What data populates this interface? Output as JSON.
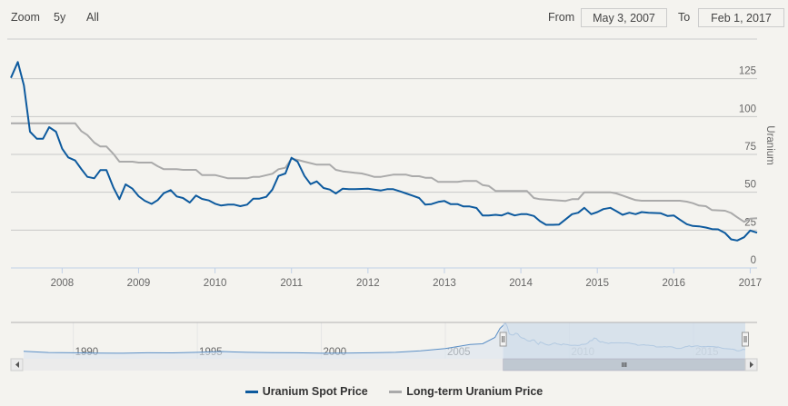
{
  "range_selector": {
    "zoom_label": "Zoom",
    "buttons": [
      "5y",
      "All"
    ],
    "from_label": "From",
    "from_value": "May 3, 2007",
    "to_label": "To",
    "to_value": "Feb 1, 2017"
  },
  "colors": {
    "spot": "#0d5a9e",
    "longterm": "#aaaaaa",
    "navigator_fill": "#cfdcea",
    "navigator_line": "#5b8fc6"
  },
  "chart_data": {
    "type": "line",
    "title": "",
    "xlabel": "",
    "ylabel": "Uranium",
    "xlim": [
      2007.33,
      2017.09
    ],
    "ylim": [
      0,
      150
    ],
    "y_ticks": [
      0,
      25,
      50,
      75,
      100,
      125
    ],
    "x_ticks": [
      2008,
      2009,
      2010,
      2011,
      2012,
      2013,
      2014,
      2015,
      2016,
      2017
    ],
    "grid": true,
    "legend_position": "bottom-center",
    "series": [
      {
        "name": "Uranium Spot Price",
        "x": [
          2007.33,
          2007.42,
          2007.5,
          2007.58,
          2007.67,
          2007.75,
          2007.83,
          2007.92,
          2008.0,
          2008.08,
          2008.17,
          2008.25,
          2008.33,
          2008.42,
          2008.5,
          2008.58,
          2008.67,
          2008.75,
          2008.83,
          2008.92,
          2009.0,
          2009.08,
          2009.17,
          2009.25,
          2009.33,
          2009.42,
          2009.5,
          2009.58,
          2009.67,
          2009.75,
          2009.83,
          2009.92,
          2010.0,
          2010.08,
          2010.17,
          2010.25,
          2010.33,
          2010.42,
          2010.5,
          2010.58,
          2010.67,
          2010.75,
          2010.83,
          2010.92,
          2011.0,
          2011.08,
          2011.17,
          2011.25,
          2011.33,
          2011.42,
          2011.5,
          2011.58,
          2011.67,
          2011.75,
          2011.83,
          2011.92,
          2012.0,
          2012.08,
          2012.17,
          2012.25,
          2012.33,
          2012.42,
          2012.5,
          2012.58,
          2012.67,
          2012.75,
          2012.83,
          2012.92,
          2013.0,
          2013.08,
          2013.17,
          2013.25,
          2013.33,
          2013.42,
          2013.5,
          2013.58,
          2013.67,
          2013.75,
          2013.83,
          2013.92,
          2014.0,
          2014.08,
          2014.17,
          2014.25,
          2014.33,
          2014.42,
          2014.5,
          2014.58,
          2014.67,
          2014.75,
          2014.83,
          2014.92,
          2015.0,
          2015.08,
          2015.17,
          2015.25,
          2015.33,
          2015.42,
          2015.5,
          2015.58,
          2015.67,
          2015.75,
          2015.83,
          2015.92,
          2016.0,
          2016.08,
          2016.17,
          2016.25,
          2016.33,
          2016.42,
          2016.5,
          2016.58,
          2016.67,
          2016.75,
          2016.83,
          2016.92,
          2017.0,
          2017.09
        ],
        "values": [
          125.6,
          136,
          120.6,
          90,
          85.3,
          85.3,
          93,
          90,
          78.8,
          73,
          71,
          65.4,
          60.2,
          59.2,
          64.6,
          64.6,
          53.2,
          45.4,
          55.2,
          52.4,
          47.4,
          44.4,
          42.3,
          44.8,
          49.4,
          51.4,
          47.2,
          46.2,
          43.2,
          47.8,
          45.6,
          44.6,
          42.4,
          41.2,
          41.8,
          41.8,
          40.8,
          41.8,
          45.8,
          45.8,
          47,
          51.8,
          60.8,
          62.4,
          72.8,
          70.2,
          60.8,
          55.4,
          57.2,
          52.8,
          51.8,
          49.2,
          52.4,
          52,
          52,
          52.2,
          52.4,
          51.8,
          51.2,
          52,
          52,
          50.6,
          49.2,
          47.8,
          46.2,
          41.8,
          42.2,
          43.6,
          44.2,
          42.2,
          42.2,
          40.6,
          40.6,
          39.6,
          34.7,
          34.7,
          35.1,
          34.7,
          36.3,
          34.7,
          35.5,
          35.5,
          34.3,
          30.9,
          28.5,
          28.5,
          28.7,
          31.9,
          35.5,
          36.5,
          39.7,
          35.5,
          36.9,
          38.9,
          39.7,
          37.5,
          35.1,
          36.5,
          35.5,
          36.9,
          36.5,
          36.3,
          36.1,
          34.3,
          34.7,
          31.9,
          28.9,
          27.7,
          27.5,
          26.7,
          25.7,
          25.5,
          23.1,
          18.9,
          18.1,
          20.3,
          24.7,
          23.3
        ]
      },
      {
        "name": "Long-term Uranium Price",
        "x": [
          2007.33,
          2008.17,
          2008.25,
          2008.33,
          2008.42,
          2008.5,
          2008.58,
          2008.67,
          2008.75,
          2008.92,
          2009.0,
          2009.17,
          2009.25,
          2009.33,
          2009.5,
          2009.58,
          2009.75,
          2009.83,
          2010.0,
          2010.17,
          2010.42,
          2010.5,
          2010.58,
          2010.75,
          2010.83,
          2010.92,
          2011.0,
          2011.08,
          2011.17,
          2011.33,
          2011.5,
          2011.58,
          2011.67,
          2011.83,
          2011.92,
          2012.0,
          2012.08,
          2012.17,
          2012.33,
          2012.5,
          2012.58,
          2012.67,
          2012.75,
          2012.83,
          2012.92,
          2013.17,
          2013.25,
          2013.42,
          2013.5,
          2013.58,
          2013.67,
          2014.08,
          2014.17,
          2014.25,
          2014.33,
          2014.5,
          2014.58,
          2014.67,
          2014.75,
          2014.83,
          2015.17,
          2015.25,
          2015.33,
          2015.42,
          2015.5,
          2015.58,
          2016.08,
          2016.17,
          2016.25,
          2016.33,
          2016.42,
          2016.5,
          2016.67,
          2016.75,
          2016.83,
          2016.92,
          2017.0,
          2017.09
        ],
        "values": [
          95.5,
          95.5,
          90.4,
          87.8,
          82.8,
          80.2,
          80.2,
          75.4,
          70.2,
          70.2,
          69.6,
          69.6,
          67.2,
          65.2,
          65.2,
          64.8,
          64.8,
          61.4,
          61.4,
          59.2,
          59.2,
          60.2,
          60.2,
          62.2,
          65.2,
          66.2,
          72.2,
          71.4,
          70.2,
          68.2,
          68.2,
          64.8,
          63.8,
          62.8,
          62.4,
          61.4,
          60.2,
          60.2,
          61.6,
          61.6,
          60.6,
          60.6,
          59.6,
          59.6,
          56.8,
          56.8,
          57.4,
          57.4,
          54.8,
          54.2,
          50.8,
          50.8,
          46.2,
          45.4,
          45.2,
          44.6,
          44.2,
          45.4,
          45.4,
          50,
          50,
          49.2,
          47.8,
          46.2,
          44.8,
          44.4,
          44.4,
          43.8,
          42.8,
          41.2,
          40.8,
          38.2,
          37.8,
          36.3,
          33.5,
          30.5,
          32.5,
          32.9
        ]
      }
    ],
    "navigator": {
      "xlim": [
        1988,
        2017.09
      ],
      "x_ticks": [
        1990,
        1995,
        2000,
        2005,
        2010,
        2015
      ],
      "selected_range": [
        2007.33,
        2017.09
      ],
      "history_x": [
        1988,
        1989,
        1990,
        1991,
        1992,
        1993,
        1994,
        1995,
        1996,
        1997,
        1998,
        1999,
        2000,
        2001,
        2002,
        2003,
        2004,
        2005,
        2006,
        2006.5,
        2007.0,
        2007.2
      ],
      "history_values": [
        16,
        11,
        10,
        9,
        8,
        10,
        9.5,
        12,
        15.5,
        12,
        10.5,
        10,
        8,
        9,
        10,
        12,
        18,
        28,
        45,
        48,
        75,
        113
      ]
    }
  }
}
